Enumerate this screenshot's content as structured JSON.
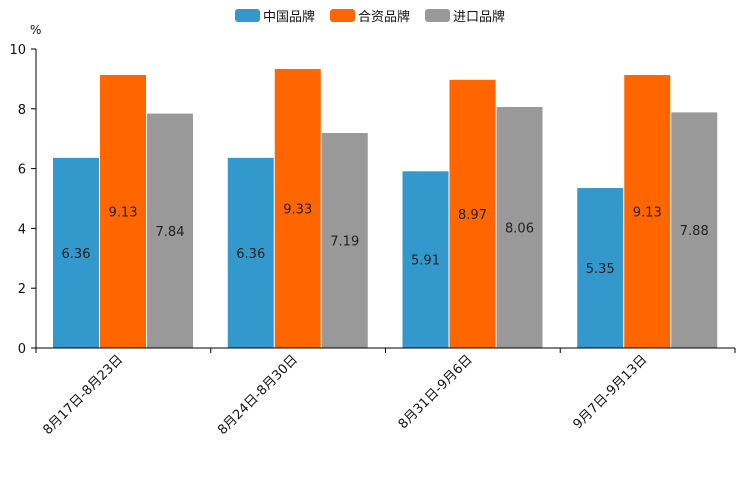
{
  "chart_data": {
    "type": "bar",
    "title": "",
    "unit": "%",
    "xlabel": "",
    "ylabel": "%",
    "ylim": [
      0,
      10
    ],
    "yticks": [
      0,
      2,
      4,
      6,
      8,
      10
    ],
    "categories": [
      "8月17日-8月23日",
      "8月24日-8月30日",
      "8月31日-9月6日",
      "9月7日-9月13日"
    ],
    "series": [
      {
        "name": "中国品牌",
        "color": "#3399CC",
        "values": [
          6.36,
          6.36,
          5.91,
          5.35
        ]
      },
      {
        "name": "合资品牌",
        "color": "#FF6600",
        "values": [
          9.13,
          9.33,
          8.97,
          9.13
        ]
      },
      {
        "name": "进口品牌",
        "color": "#999999",
        "values": [
          7.84,
          7.19,
          8.06,
          7.88
        ]
      }
    ],
    "legend_position": "top-center",
    "grid": false
  }
}
